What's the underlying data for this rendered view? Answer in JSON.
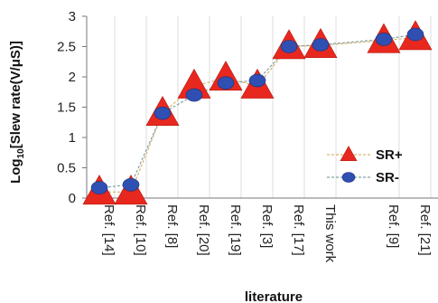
{
  "chart_data": {
    "type": "line",
    "title": "",
    "xlabel": "literature",
    "ylabel_prefix": "Log",
    "ylabel_sub": "10",
    "ylabel_rest": "[Slew rate(V/μS)]",
    "ylim": [
      0,
      3
    ],
    "yticks": [
      "0",
      "0.5",
      "1",
      "1.5",
      "2",
      "2.5",
      "3"
    ],
    "categories": [
      "Ref. [14]",
      "Ref. [10]",
      "Ref. [8]",
      "Ref. [20]",
      "Ref. [19]",
      "Ref. [3]",
      "Ref. [17]",
      "This work",
      "Ref. [9]",
      "Ref. [21]"
    ],
    "x": [
      1,
      2,
      3,
      4,
      5,
      6,
      7,
      8,
      10,
      11
    ],
    "grid": "vertical",
    "legend_position": "right-middle",
    "series": [
      {
        "name": "SR+",
        "values": [
          0.1,
          0.1,
          1.4,
          1.85,
          1.98,
          1.85,
          2.5,
          2.52,
          2.6,
          2.65
        ],
        "color": "#e8281e",
        "marker": "triangle",
        "line_color": "#d9b36a"
      },
      {
        "name": "SR-",
        "values": [
          0.17,
          0.22,
          1.4,
          1.7,
          1.9,
          1.94,
          2.5,
          2.53,
          2.62,
          2.7
        ],
        "color": "#2f4fb3",
        "marker": "circle",
        "line_color": "#7fa3a8"
      }
    ]
  }
}
